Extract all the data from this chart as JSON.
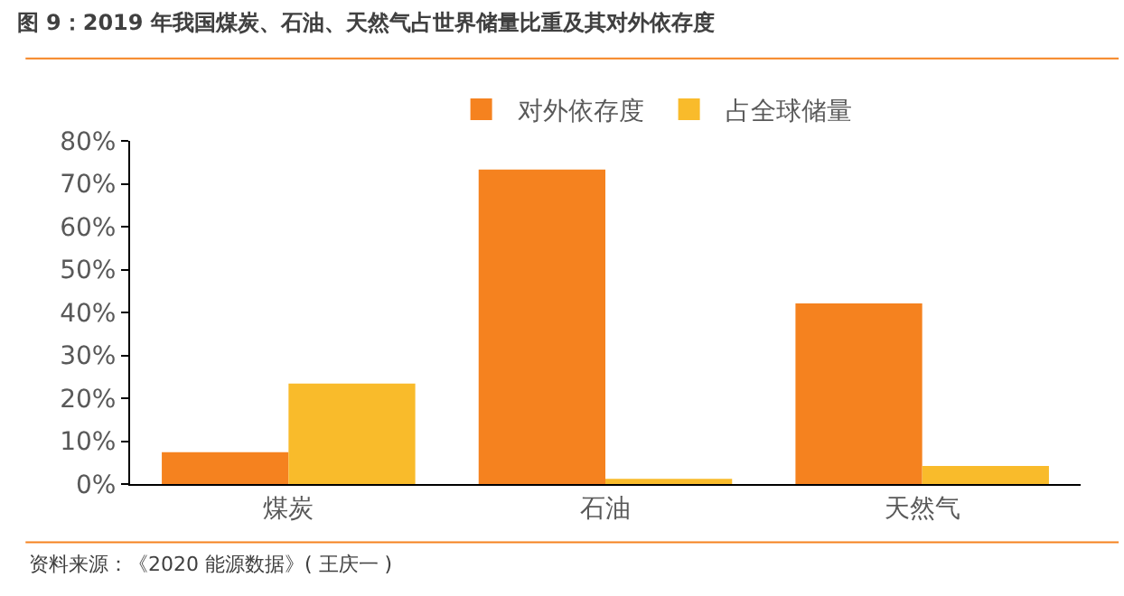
{
  "chart_data": {
    "type": "bar",
    "title": "图 9：2019 年我国煤炭、石油、天然气占世界储量比重及其对外依存度",
    "categories": [
      "煤炭",
      "石油",
      "天然气"
    ],
    "series": [
      {
        "name": "对外依存度",
        "color": "#f5821f",
        "values": [
          7.4,
          73.3,
          42.1
        ]
      },
      {
        "name": "占全球储量",
        "color": "#f9bb2b",
        "values": [
          23.4,
          1.2,
          4.2
        ]
      }
    ],
    "ylim": [
      0,
      80
    ],
    "yticks": [
      {
        "value": 0,
        "label": "0%"
      },
      {
        "value": 10,
        "label": "10%"
      },
      {
        "value": 20,
        "label": "20%"
      },
      {
        "value": 30,
        "label": "30%"
      },
      {
        "value": 40,
        "label": "40%"
      },
      {
        "value": 50,
        "label": "50%"
      },
      {
        "value": 60,
        "label": "60%"
      },
      {
        "value": 70,
        "label": "70%"
      },
      {
        "value": 80,
        "label": "80%"
      }
    ],
    "legend": "top",
    "annotations": [
      "资料来源：《2020 能源数据》( 王庆一 )"
    ]
  }
}
